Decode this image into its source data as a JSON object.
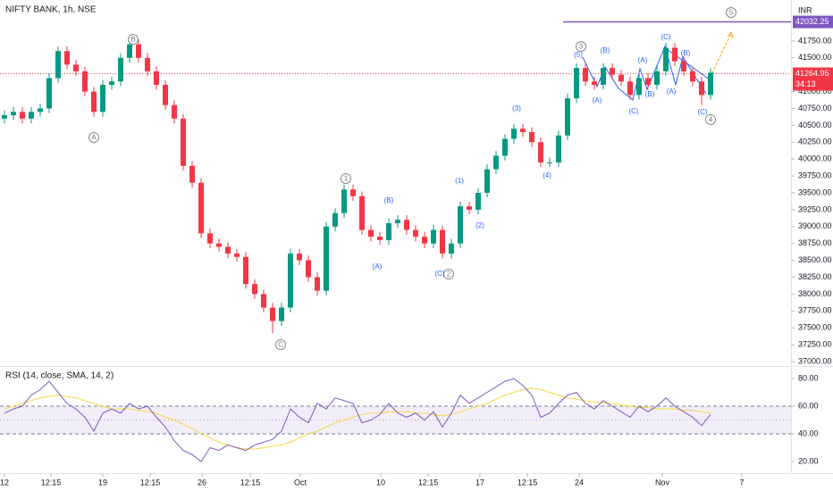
{
  "chart_data": {
    "type": "candlestick",
    "title": "NIFTY BANK, 1h, NSE",
    "currency": "INR",
    "xlim": [
      0,
      88.5
    ],
    "xticks": [
      {
        "value": 0.5,
        "label": "12"
      },
      {
        "value": 5.7,
        "label": "12:15"
      },
      {
        "value": 11.5,
        "label": "19"
      },
      {
        "value": 16.8,
        "label": "12:15"
      },
      {
        "value": 22.6,
        "label": "26"
      },
      {
        "value": 28,
        "label": "12:15"
      },
      {
        "value": 33.6,
        "label": "Oct"
      },
      {
        "value": 42.6,
        "label": "10"
      },
      {
        "value": 47.9,
        "label": "12:15"
      },
      {
        "value": 53.7,
        "label": "17"
      },
      {
        "value": 59,
        "label": "12:15"
      },
      {
        "value": 64.8,
        "label": "24"
      },
      {
        "value": 74.1,
        "label": "Nov"
      },
      {
        "value": 83,
        "label": "7"
      }
    ],
    "ylim": [
      36934,
      42357
    ],
    "yticks": [
      {
        "value": 37000,
        "label": "37000.00"
      },
      {
        "value": 37250,
        "label": "37250.00"
      },
      {
        "value": 37500,
        "label": "37500.00"
      },
      {
        "value": 37750,
        "label": "37750.00"
      },
      {
        "value": 38000,
        "label": "38000.00"
      },
      {
        "value": 38250,
        "label": "38250.00"
      },
      {
        "value": 38500,
        "label": "38500.00"
      },
      {
        "value": 38750,
        "label": "38750.00"
      },
      {
        "value": 39000,
        "label": "39000.00"
      },
      {
        "value": 39250,
        "label": "39250.00"
      },
      {
        "value": 39500,
        "label": "39500.00"
      },
      {
        "value": 39750,
        "label": "39750.00"
      },
      {
        "value": 40000,
        "label": "40000.00"
      },
      {
        "value": 40250,
        "label": "40250.00"
      },
      {
        "value": 40500,
        "label": "40500.00"
      },
      {
        "value": 40750,
        "label": "40750.00"
      },
      {
        "value": 41000,
        "label": "41000.00"
      },
      {
        "value": 41500,
        "label": "41500.00"
      },
      {
        "value": 41750,
        "label": "41750.00"
      }
    ],
    "up_color": "#089981",
    "down_color": "#f23645",
    "open": [
      40600,
      40650,
      40700,
      40600,
      40700,
      40750,
      41200,
      41600,
      41400,
      41300,
      41000,
      40700,
      41100,
      41150,
      41500,
      41700,
      41500,
      41300,
      41100,
      40800,
      40600,
      39900,
      39650,
      38900,
      38750,
      38700,
      38600,
      38550,
      38150,
      38000,
      37800,
      37600,
      37800,
      38600,
      38500,
      38250,
      38050,
      39000,
      39200,
      39550,
      39450,
      38950,
      38850,
      38800,
      39050,
      39100,
      38950,
      38850,
      38750,
      38950,
      38600,
      38750,
      39300,
      39250,
      39500,
      39850,
      40050,
      40300,
      40450,
      40400,
      40250,
      39950,
      39950,
      40350,
      40900,
      41350,
      41150,
      41100,
      41350,
      41250,
      41150,
      40950,
      41200,
      41100,
      41300,
      41650,
      41450,
      41300,
      41150,
      40950
    ],
    "high": [
      40720,
      40770,
      40770,
      40770,
      40820,
      41270,
      41670,
      41670,
      41470,
      41370,
      41070,
      41170,
      41220,
      41570,
      41770,
      41770,
      41570,
      41370,
      41170,
      40870,
      40670,
      39970,
      39720,
      38970,
      38820,
      38770,
      38670,
      38620,
      38220,
      38070,
      37870,
      37870,
      38670,
      38670,
      38570,
      38320,
      39070,
      39270,
      39620,
      39620,
      39520,
      39020,
      38920,
      39120,
      39170,
      39170,
      39020,
      38920,
      39020,
      39020,
      38820,
      39370,
      39370,
      39570,
      39920,
      40120,
      40370,
      40520,
      40520,
      40470,
      40320,
      40020,
      40420,
      40970,
      41420,
      41420,
      41220,
      41420,
      41420,
      41320,
      41220,
      41270,
      41270,
      41370,
      41720,
      41720,
      41520,
      41370,
      41220,
      41350
    ],
    "low": [
      40530,
      40580,
      40530,
      40530,
      40630,
      40680,
      41130,
      41330,
      41230,
      40930,
      40630,
      40630,
      41030,
      41080,
      41430,
      41430,
      41230,
      41030,
      40730,
      40530,
      39830,
      39580,
      38830,
      38680,
      38630,
      38530,
      38480,
      38080,
      37930,
      37730,
      37420,
      37530,
      37730,
      38430,
      38180,
      37980,
      37980,
      38930,
      39130,
      39380,
      38880,
      38780,
      38730,
      38730,
      38980,
      38880,
      38780,
      38680,
      38680,
      38530,
      38530,
      38680,
      39180,
      39180,
      39430,
      39780,
      39980,
      40230,
      40330,
      40180,
      39880,
      39880,
      39880,
      40280,
      40830,
      41080,
      41030,
      41030,
      41180,
      41080,
      40880,
      40880,
      41030,
      41030,
      41230,
      41380,
      41230,
      41080,
      40800,
      40880
    ],
    "close": [
      40650,
      40700,
      40600,
      40700,
      40750,
      41200,
      41600,
      41400,
      41300,
      41000,
      40700,
      41100,
      41150,
      41500,
      41700,
      41500,
      41300,
      41100,
      40800,
      40600,
      39900,
      39650,
      38900,
      38750,
      38700,
      38600,
      38550,
      38150,
      38000,
      37800,
      37600,
      37800,
      38600,
      38500,
      38250,
      38050,
      39000,
      39200,
      39550,
      39450,
      38950,
      38850,
      38800,
      39050,
      39100,
      38950,
      38850,
      38750,
      38950,
      38600,
      38750,
      39300,
      39250,
      39500,
      39850,
      40050,
      40300,
      40450,
      40400,
      40250,
      39950,
      39950,
      40350,
      40900,
      41350,
      41150,
      41100,
      41350,
      41250,
      41150,
      40950,
      41200,
      41100,
      41300,
      41650,
      41450,
      41300,
      41150,
      40950,
      41280
    ],
    "level": {
      "value": 42032.25,
      "label": "42032.25",
      "color": "#7e57c2"
    },
    "last_price": {
      "value": 41264.95,
      "countdown": "34:13",
      "color": "#f23645"
    },
    "annotations": [
      {
        "text": "B",
        "x": 14.9,
        "y": 41775,
        "circled": true
      },
      {
        "text": "A",
        "x": 10.5,
        "y": 40320,
        "circled": true
      },
      {
        "text": "C",
        "x": 31.4,
        "y": 37251,
        "circled": true
      },
      {
        "text": "1",
        "x": 38.7,
        "y": 39712,
        "circled": true
      },
      {
        "text": "2",
        "x": 50.2,
        "y": 38296,
        "circled": true
      },
      {
        "text": "3",
        "x": 65,
        "y": 41669,
        "circled": true
      },
      {
        "text": "4",
        "x": 79.5,
        "y": 40585,
        "circled": true
      },
      {
        "text": "5",
        "x": 81.8,
        "y": 42172,
        "circled": true
      },
      {
        "text": "(A)",
        "x": 42.2,
        "y": 38402,
        "circled": false
      },
      {
        "text": "(B)",
        "x": 43.5,
        "y": 39381,
        "circled": false
      },
      {
        "text": "(C)",
        "x": 49.2,
        "y": 38296,
        "circled": false
      },
      {
        "text": "(1)",
        "x": 51.4,
        "y": 39672,
        "circled": false
      },
      {
        "text": "(2)",
        "x": 53.7,
        "y": 39011,
        "circled": false
      },
      {
        "text": "(3)",
        "x": 57.8,
        "y": 40743,
        "circled": false
      },
      {
        "text": "(4)",
        "x": 61.2,
        "y": 39751,
        "circled": false
      },
      {
        "text": "(5)",
        "x": 64.7,
        "y": 41537,
        "circled": false
      },
      {
        "text": "(B)",
        "x": 67.7,
        "y": 41603,
        "circled": false
      },
      {
        "text": "(A)",
        "x": 66.8,
        "y": 40862,
        "circled": false
      },
      {
        "text": "(C)",
        "x": 70.9,
        "y": 40704,
        "circled": false
      },
      {
        "text": "(A)",
        "x": 71.9,
        "y": 41458,
        "circled": false
      },
      {
        "text": "(B)",
        "x": 72.7,
        "y": 40955,
        "circled": false
      },
      {
        "text": "(C)",
        "x": 74.5,
        "y": 41802,
        "circled": false
      },
      {
        "text": "(A)",
        "x": 75.1,
        "y": 40995,
        "circled": false
      },
      {
        "text": "(B)",
        "x": 76.7,
        "y": 41563,
        "circled": false
      },
      {
        "text": "(C)",
        "x": 78.6,
        "y": 40690,
        "circled": false
      }
    ],
    "rsi": {
      "label": "RSI (14, close, SMA, 14, 2)",
      "color": "#7e57c2",
      "ma_color": "#f5d742",
      "ylim": [
        11.6,
        88.4
      ],
      "yticks": [
        {
          "value": 80,
          "label": "80.00"
        },
        {
          "value": 60,
          "label": "60.00"
        },
        {
          "value": 40,
          "label": "40.00"
        },
        {
          "value": 20,
          "label": "20.00"
        }
      ],
      "band": [
        40,
        60
      ],
      "midline": 50,
      "values": [
        55,
        58,
        60,
        68,
        72,
        78,
        70,
        62,
        58,
        52,
        42,
        55,
        58,
        55,
        62,
        58,
        60,
        52,
        45,
        35,
        28,
        25,
        20,
        30,
        28,
        32,
        30,
        28,
        32,
        34,
        36,
        42,
        58,
        52,
        48,
        62,
        58,
        66,
        64,
        62,
        48,
        50,
        54,
        62,
        55,
        52,
        55,
        50,
        56,
        45,
        55,
        68,
        62,
        66,
        70,
        74,
        78,
        80,
        75,
        68,
        52,
        55,
        62,
        68,
        70,
        62,
        58,
        64,
        60,
        56,
        52,
        60,
        56,
        60,
        66,
        60,
        56,
        52,
        46,
        54
      ],
      "ma_values": [
        58,
        60,
        62,
        64,
        66,
        67,
        68,
        67,
        66,
        64,
        62,
        60,
        58,
        58,
        58,
        57,
        56,
        55,
        52,
        50,
        47,
        44,
        40,
        37,
        34,
        32,
        30,
        29,
        29,
        30,
        31,
        32,
        34,
        37,
        40,
        42,
        45,
        48,
        50,
        52,
        54,
        55,
        55,
        56,
        56,
        56,
        55,
        55,
        54,
        53,
        54,
        56,
        58,
        60,
        62,
        65,
        68,
        70,
        72,
        73,
        72,
        70,
        68,
        66,
        65,
        64,
        63,
        62,
        62,
        61,
        60,
        59,
        59,
        58,
        58,
        58,
        57,
        57,
        56,
        55
      ]
    }
  }
}
